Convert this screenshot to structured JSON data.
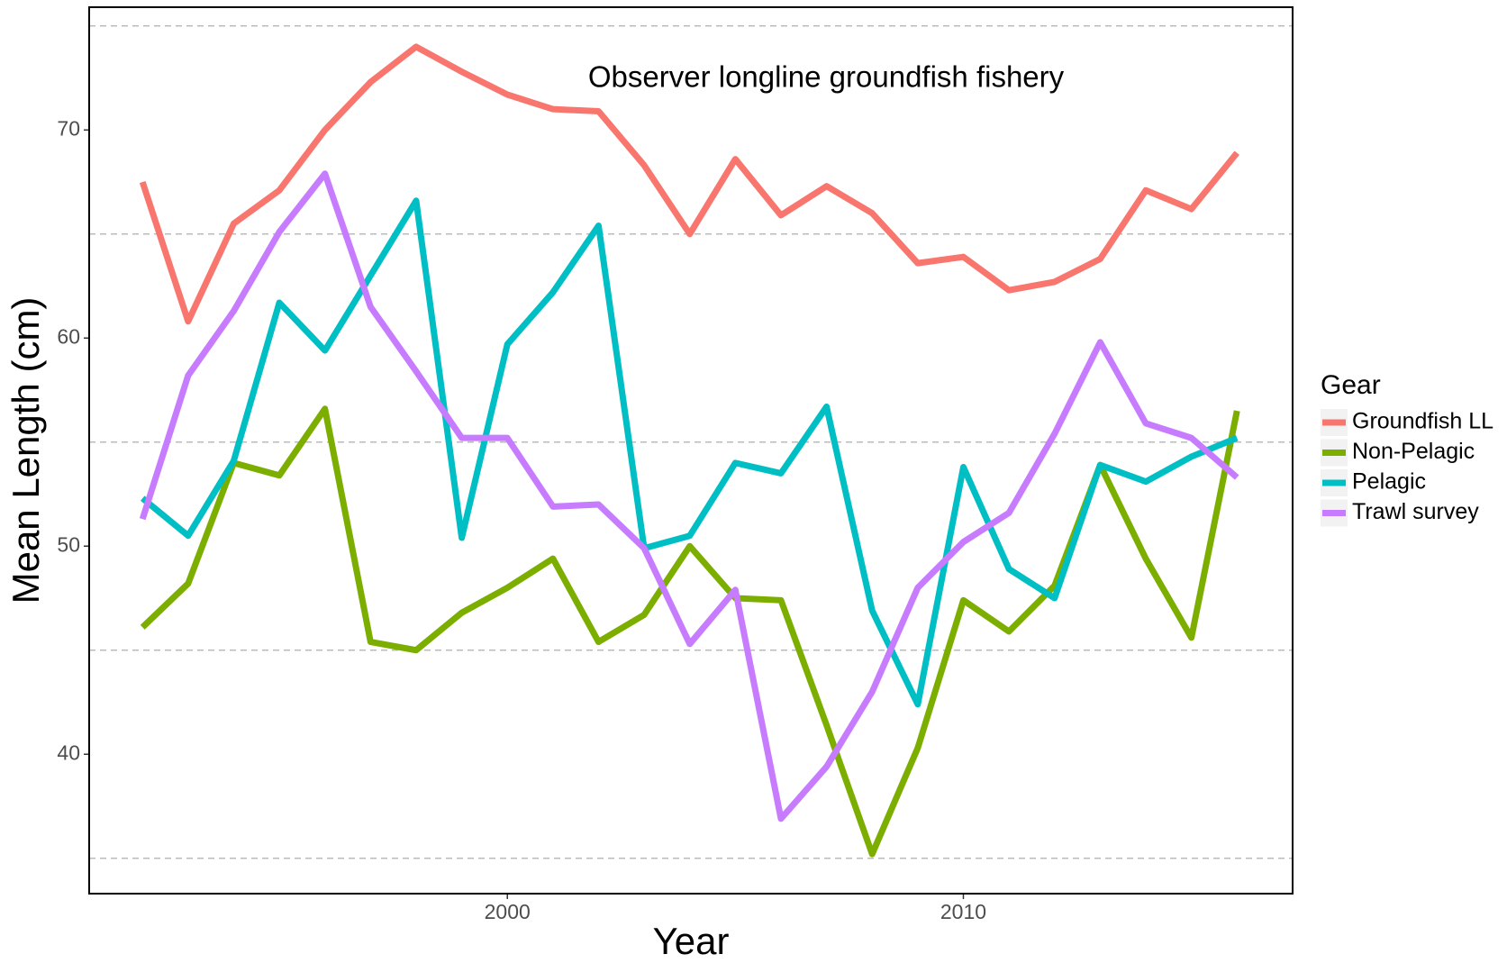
{
  "chart_data": {
    "type": "line",
    "annotation": "Observer longline groundfish fishery",
    "xlabel": "Year",
    "ylabel": "Mean Length (cm)",
    "legend_title": "Gear",
    "legend_position": "right",
    "x": [
      1992,
      1993,
      1994,
      1995,
      1996,
      1997,
      1998,
      1999,
      2000,
      2001,
      2002,
      2003,
      2004,
      2005,
      2006,
      2007,
      2008,
      2009,
      2010,
      2011,
      2012,
      2013,
      2014,
      2015,
      2016
    ],
    "series": [
      {
        "name": "Groundfish LL",
        "color": "#F8766D",
        "values": [
          67.5,
          60.8,
          65.5,
          67.1,
          70.0,
          72.3,
          74.0,
          72.8,
          71.7,
          71.0,
          70.9,
          68.3,
          65.0,
          68.6,
          65.9,
          67.3,
          66.0,
          63.6,
          63.9,
          62.3,
          62.7,
          63.8,
          67.1,
          66.2,
          68.9
        ]
      },
      {
        "name": "Non-Pelagic",
        "color": "#7CAE00",
        "values": [
          46.1,
          48.2,
          54.0,
          53.4,
          56.6,
          45.4,
          45.0,
          46.8,
          48.0,
          49.4,
          45.4,
          46.7,
          50.0,
          47.5,
          47.4,
          41.4,
          35.2,
          40.3,
          47.4,
          45.9,
          48.1,
          53.9,
          49.4,
          45.6,
          56.5
        ]
      },
      {
        "name": "Pelagic",
        "color": "#00BFC4",
        "values": [
          52.3,
          50.5,
          54.1,
          61.7,
          59.4,
          63.0,
          66.6,
          50.4,
          59.7,
          62.2,
          65.4,
          49.9,
          50.5,
          54.0,
          53.5,
          56.7,
          46.9,
          42.4,
          53.8,
          48.9,
          47.5,
          53.9,
          53.1,
          54.3,
          55.2
        ]
      },
      {
        "name": "Trawl survey",
        "color": "#C77CFF",
        "values": [
          51.3,
          58.2,
          61.3,
          65.1,
          67.9,
          61.5,
          58.4,
          55.2,
          55.2,
          51.9,
          52.0,
          49.9,
          45.3,
          47.9,
          36.9,
          39.4,
          43.0,
          48.0,
          50.2,
          51.6,
          55.4,
          59.8,
          55.9,
          55.2,
          53.3
        ]
      }
    ],
    "xlim": [
      1990.83,
      2017.22
    ],
    "xticks": [
      2000,
      2010
    ],
    "ylim": [
      33.3,
      75.9
    ],
    "yticks": [
      40,
      50,
      60,
      70
    ],
    "ygrid": [
      35,
      45,
      55,
      65,
      75
    ]
  }
}
